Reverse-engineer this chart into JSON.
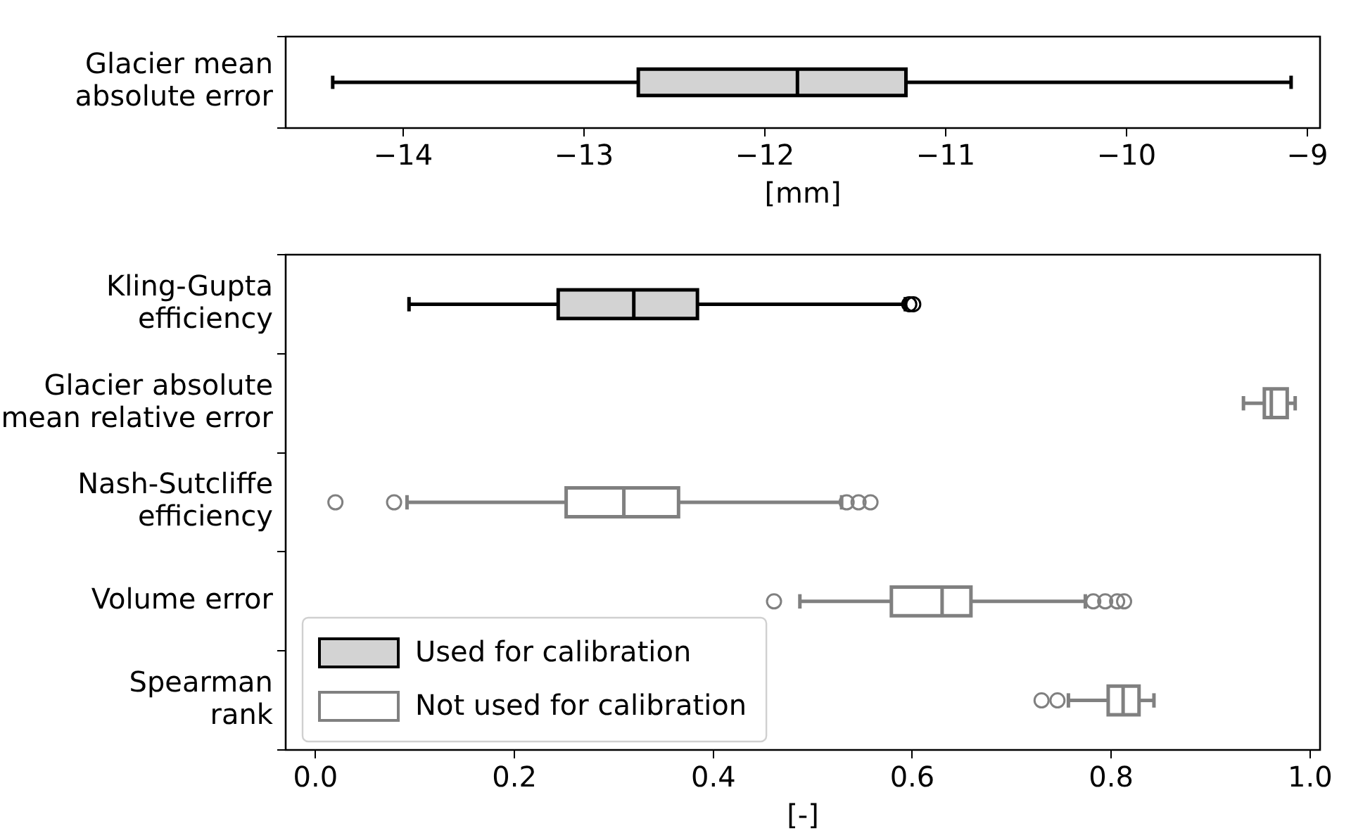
{
  "chart_data": [
    {
      "type": "box",
      "orientation": "horizontal",
      "categories": [
        "Glacier mean\nabsolute error"
      ],
      "xlabel": "[mm]",
      "xlim": [
        -14.65,
        -8.93
      ],
      "xticks": [
        {
          "value": -14,
          "label": "−14"
        },
        {
          "value": -13,
          "label": "−13"
        },
        {
          "value": -12,
          "label": "−12"
        },
        {
          "value": -11,
          "label": "−11"
        },
        {
          "value": -10,
          "label": "−10"
        },
        {
          "value": -9,
          "label": "−9"
        }
      ],
      "series": [
        {
          "color": "#d3d3d3",
          "boxes": [
            {
              "low": -14.39,
              "q1": -12.7,
              "median": -11.82,
              "q3": -11.22,
              "high": -9.09
            }
          ]
        }
      ]
    },
    {
      "type": "box",
      "orientation": "horizontal",
      "categories": [
        "Kling-Gupta\nefficiency",
        "Glacier absolute\nmean relative error",
        "Nash-Sutcliffe\nefficiency",
        "Volume error",
        "Spearman\nrank"
      ],
      "xlabel": "[-]",
      "xlim": [
        -0.03,
        1.01
      ],
      "xticks": [
        {
          "value": 0,
          "label": "0.0"
        },
        0.2,
        0.4,
        0.6,
        0.8,
        {
          "value": 1,
          "label": "1.0"
        }
      ],
      "legend": "bottom left",
      "series": [
        {
          "name": "Used for calibration",
          "color": "#d3d3d3",
          "boxes": [
            {
              "low": 0.094,
              "q1": 0.244,
              "median": 0.32,
              "q3": 0.384,
              "high": 0.593,
              "outliers": [
                0.597,
                0.601
              ]
            },
            null,
            null,
            null,
            null
          ]
        },
        {
          "name": "Not used for calibration",
          "color": "#808080",
          "boxes": [
            null,
            {
              "low": 0.933,
              "q1": 0.954,
              "median": 0.961,
              "q3": 0.977,
              "high": 0.985
            },
            {
              "low": 0.092,
              "q1": 0.252,
              "median": 0.31,
              "q3": 0.365,
              "high": 0.529,
              "outliers": [
                0.02,
                0.079,
                0.534,
                0.546,
                0.558
              ]
            },
            {
              "low": 0.487,
              "q1": 0.579,
              "median": 0.63,
              "q3": 0.659,
              "high": 0.774,
              "outliers": [
                0.461,
                0.782,
                0.794,
                0.806,
                0.813
              ]
            },
            {
              "low": 0.757,
              "q1": 0.797,
              "median": 0.812,
              "q3": 0.828,
              "high": 0.843,
              "outliers": [
                0.73,
                0.746
              ]
            }
          ]
        }
      ]
    }
  ]
}
